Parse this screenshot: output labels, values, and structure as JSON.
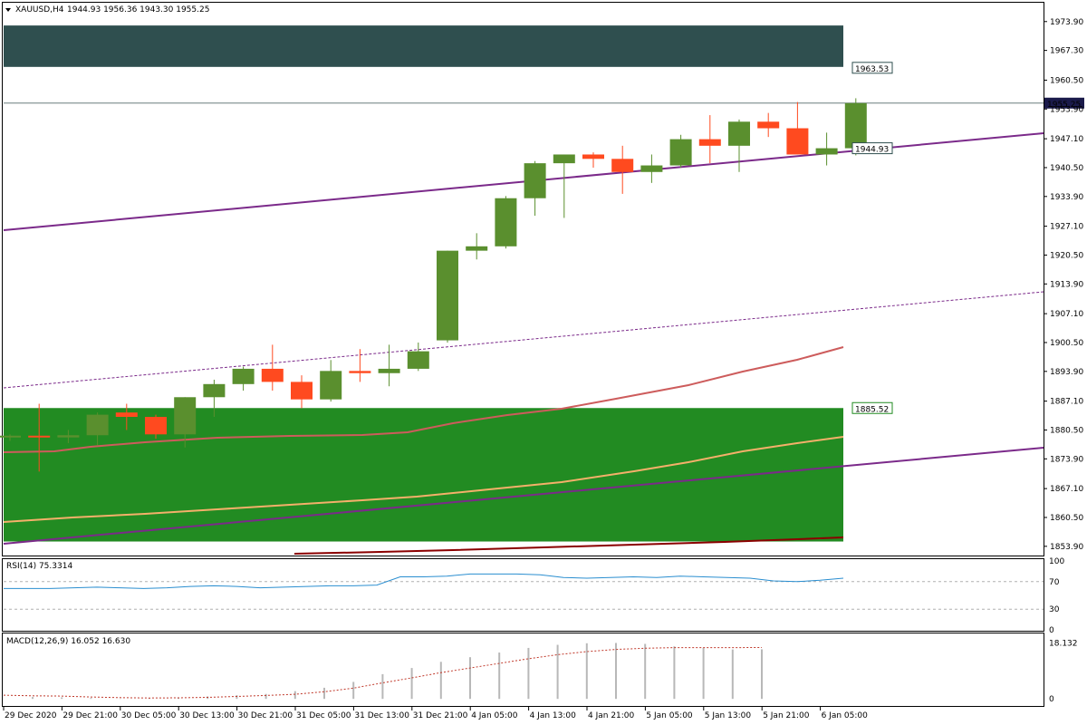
{
  "header": {
    "symbol": "XAUUSD,H4",
    "ohlc": "1944.93 1956.36 1943.30 1955.25"
  },
  "colors": {
    "bull": "#5a8f2e",
    "bear": "#ff4a1f",
    "top_zone": "#2f4f4f",
    "bottom_zone": "#228b22",
    "trend_line": "#7b2a8a",
    "ma_fast": "#cd5c5c",
    "ma_mid": "#f4b06a",
    "ma_slow": "#8b0000",
    "rsi_line": "#2a8ed0",
    "macd_signal": "#c0392b",
    "macd_hist": "#b8b8b8"
  },
  "chart_data": [
    {
      "type": "candlestick",
      "title": "XAUUSD,H4",
      "ylim": [
        1852.0,
        1978.0
      ],
      "y_ticks": [
        "1973.90",
        "1967.30",
        "1960.50",
        "1953.90",
        "1947.10",
        "1940.50",
        "1933.90",
        "1927.10",
        "1920.50",
        "1913.90",
        "1907.10",
        "1900.50",
        "1893.90",
        "1887.10",
        "1880.50",
        "1873.90",
        "1867.10",
        "1860.50",
        "1853.90"
      ],
      "x_ticks": [
        "29 Dec 2020",
        "29 Dec 21:00",
        "30 Dec 05:00",
        "30 Dec 13:00",
        "30 Dec 21:00",
        "31 Dec 05:00",
        "31 Dec 13:00",
        "31 Dec 21:00",
        "4 Jan 05:00",
        "4 Jan 13:00",
        "4 Jan 21:00",
        "5 Jan 05:00",
        "5 Jan 13:00",
        "5 Jan 21:00",
        "6 Jan 05:00"
      ],
      "candles": [
        {
          "o": 1879.0,
          "h": 1879.5,
          "l": 1878.0,
          "c": 1879.2
        },
        {
          "o": 1879.2,
          "h": 1886.5,
          "l": 1871.0,
          "c": 1878.8
        },
        {
          "o": 1878.8,
          "h": 1880.5,
          "l": 1877.5,
          "c": 1879.3
        },
        {
          "o": 1879.3,
          "h": 1884.5,
          "l": 1877.0,
          "c": 1884.0
        },
        {
          "o": 1884.5,
          "h": 1886.5,
          "l": 1880.5,
          "c": 1883.5
        },
        {
          "o": 1883.5,
          "h": 1884.0,
          "l": 1878.5,
          "c": 1879.5
        },
        {
          "o": 1879.5,
          "h": 1888.0,
          "l": 1876.5,
          "c": 1888.0
        },
        {
          "o": 1888.0,
          "h": 1892.0,
          "l": 1883.5,
          "c": 1891.0
        },
        {
          "o": 1891.0,
          "h": 1895.0,
          "l": 1889.5,
          "c": 1894.5
        },
        {
          "o": 1894.5,
          "h": 1900.0,
          "l": 1889.5,
          "c": 1891.5
        },
        {
          "o": 1891.5,
          "h": 1893.0,
          "l": 1885.5,
          "c": 1887.5
        },
        {
          "o": 1887.5,
          "h": 1896.5,
          "l": 1887.0,
          "c": 1894.0
        },
        {
          "o": 1894.0,
          "h": 1899.0,
          "l": 1891.5,
          "c": 1893.5
        },
        {
          "o": 1893.5,
          "h": 1900.0,
          "l": 1890.5,
          "c": 1894.5
        },
        {
          "o": 1894.5,
          "h": 1900.5,
          "l": 1894.0,
          "c": 1898.5
        },
        {
          "o": 1901.0,
          "h": 1921.5,
          "l": 1900.5,
          "c": 1921.5
        },
        {
          "o": 1921.5,
          "h": 1925.5,
          "l": 1919.5,
          "c": 1922.5
        },
        {
          "o": 1922.5,
          "h": 1934.0,
          "l": 1922.0,
          "c": 1933.5
        },
        {
          "o": 1933.5,
          "h": 1942.0,
          "l": 1929.5,
          "c": 1941.5
        },
        {
          "o": 1941.5,
          "h": 1943.5,
          "l": 1929.0,
          "c": 1943.5
        },
        {
          "o": 1943.5,
          "h": 1944.0,
          "l": 1940.5,
          "c": 1942.5
        },
        {
          "o": 1942.5,
          "h": 1945.5,
          "l": 1934.5,
          "c": 1939.5
        },
        {
          "o": 1939.5,
          "h": 1943.5,
          "l": 1937.0,
          "c": 1941.0
        },
        {
          "o": 1941.0,
          "h": 1948.0,
          "l": 1940.5,
          "c": 1947.0
        },
        {
          "o": 1947.0,
          "h": 1952.5,
          "l": 1941.5,
          "c": 1945.5
        },
        {
          "o": 1945.5,
          "h": 1951.5,
          "l": 1939.5,
          "c": 1951.0
        },
        {
          "o": 1951.0,
          "h": 1953.0,
          "l": 1947.5,
          "c": 1949.5
        },
        {
          "o": 1949.5,
          "h": 1955.5,
          "l": 1943.5,
          "c": 1943.5
        },
        {
          "o": 1943.5,
          "h": 1948.5,
          "l": 1941.0,
          "c": 1944.93
        },
        {
          "o": 1944.93,
          "h": 1956.36,
          "l": 1943.3,
          "c": 1955.25
        }
      ],
      "zones": [
        {
          "top": 1973.0,
          "bottom": 1963.53,
          "label": "1963.53",
          "color": "#2f4f4f"
        },
        {
          "top": 1885.52,
          "bottom": 1855.0,
          "label": "1885.52",
          "color": "#228b22"
        }
      ],
      "current_price": {
        "value": 1955.25,
        "label": "1955.25"
      },
      "trend_label": {
        "value": 1944.93,
        "label": "1944.93"
      }
    },
    {
      "type": "line",
      "title": "RSI(14) 75.3314",
      "ylim": [
        0,
        100
      ],
      "y_ticks": [
        "100",
        "70",
        "30",
        "0"
      ],
      "levels": [
        70,
        30
      ],
      "values": [
        60,
        60,
        60,
        61,
        62,
        61,
        60,
        61,
        63,
        64,
        63,
        61,
        62,
        63,
        64,
        64,
        65,
        77,
        77,
        78,
        81,
        81,
        81,
        80,
        76,
        75,
        76,
        77,
        76,
        78,
        77,
        76,
        75,
        71,
        70,
        72,
        75
      ]
    },
    {
      "type": "bar",
      "title": "MACD(12,26,9) 16.052 16.630",
      "ylim": [
        -2,
        20
      ],
      "y_ticks": [
        "18.132",
        "0"
      ],
      "histogram": [
        0.6,
        0.5,
        0.3,
        0.1,
        0.3,
        0.5,
        0.8,
        1.2,
        1.6,
        2.5,
        3.6,
        5.5,
        8.0,
        10.0,
        12.0,
        13.5,
        15.0,
        16.5,
        17.5,
        18.0,
        18.1,
        17.8,
        17.0,
        16.5,
        16.0,
        16.052
      ],
      "signal": [
        1.0,
        0.9,
        0.6,
        0.4,
        0.3,
        0.35,
        0.5,
        0.8,
        1.1,
        1.5,
        2.3,
        3.5,
        5.2,
        6.8,
        8.5,
        10.0,
        11.5,
        13.0,
        14.3,
        15.3,
        16.0,
        16.4,
        16.6,
        16.6,
        16.6,
        16.63
      ]
    }
  ]
}
